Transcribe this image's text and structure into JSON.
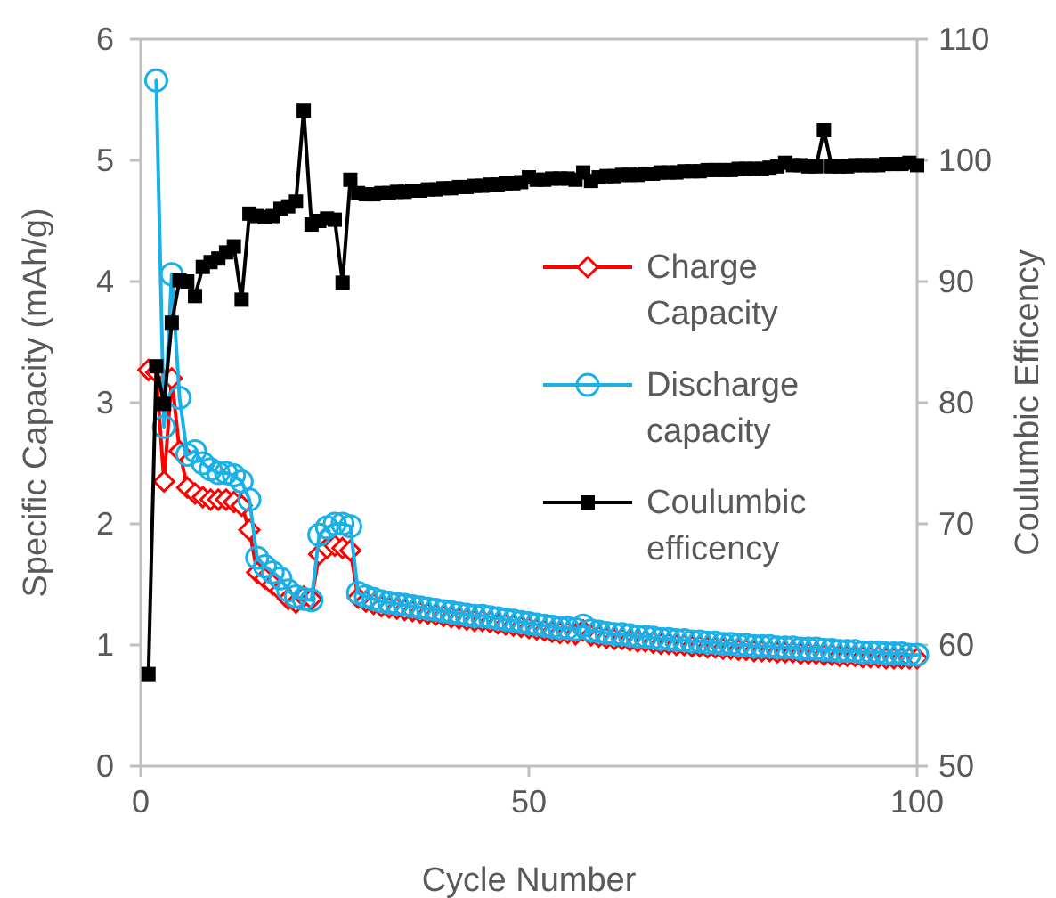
{
  "chart_data": {
    "type": "line",
    "xlabel": "Cycle Number",
    "ylabel": "Specific Capacity (mAh/g)",
    "y2label": "Coulumbic Efficency",
    "x": [
      1,
      2,
      3,
      4,
      5,
      6,
      7,
      8,
      9,
      10,
      11,
      12,
      13,
      14,
      15,
      16,
      17,
      18,
      19,
      20,
      21,
      22,
      23,
      24,
      25,
      26,
      27,
      28,
      29,
      30,
      31,
      32,
      33,
      34,
      35,
      36,
      37,
      38,
      39,
      40,
      41,
      42,
      43,
      44,
      45,
      46,
      47,
      48,
      49,
      50,
      51,
      52,
      53,
      54,
      55,
      56,
      57,
      58,
      59,
      60,
      61,
      62,
      63,
      64,
      65,
      66,
      67,
      68,
      69,
      70,
      71,
      72,
      73,
      74,
      75,
      76,
      77,
      78,
      79,
      80,
      81,
      82,
      83,
      84,
      85,
      86,
      87,
      88,
      89,
      90,
      91,
      92,
      93,
      94,
      95,
      96,
      97,
      98,
      99,
      100
    ],
    "xlim": [
      0,
      100
    ],
    "xticks": [
      0,
      50,
      100
    ],
    "ylim": [
      0,
      6
    ],
    "yticks": [
      0,
      1,
      2,
      3,
      4,
      5,
      6
    ],
    "y2lim": [
      50,
      110
    ],
    "y2ticks": [
      50,
      60,
      70,
      80,
      90,
      100,
      110
    ],
    "legend": "right",
    "grid": false,
    "series": [
      {
        "name": "Charge Capacity",
        "color": "#ff0000",
        "marker": "diamond",
        "values": [
          3.27,
          3.25,
          2.35,
          3.2,
          2.6,
          2.3,
          2.25,
          2.22,
          2.2,
          2.2,
          2.2,
          2.18,
          2.15,
          1.95,
          1.6,
          1.55,
          1.5,
          1.45,
          1.38,
          1.35,
          1.4,
          1.38,
          1.75,
          1.8,
          1.82,
          1.8,
          1.78,
          1.39,
          1.36,
          1.34,
          1.32,
          1.31,
          1.3,
          1.29,
          1.28,
          1.27,
          1.26,
          1.25,
          1.24,
          1.23,
          1.22,
          1.21,
          1.2,
          1.2,
          1.19,
          1.18,
          1.17,
          1.16,
          1.15,
          1.14,
          1.13,
          1.12,
          1.11,
          1.1,
          1.1,
          1.09,
          1.12,
          1.08,
          1.07,
          1.06,
          1.05,
          1.05,
          1.04,
          1.03,
          1.03,
          1.02,
          1.01,
          1.01,
          1.0,
          1.0,
          0.99,
          0.99,
          0.98,
          0.98,
          0.97,
          0.97,
          0.96,
          0.96,
          0.95,
          0.95,
          0.95,
          0.94,
          0.94,
          0.94,
          0.93,
          0.93,
          0.93,
          0.92,
          0.92,
          0.91,
          0.91,
          0.91,
          0.9,
          0.9,
          0.9,
          0.89,
          0.89,
          0.89,
          0.89,
          0.89
        ]
      },
      {
        "name": "Discharge capacity",
        "color": "#1ab0e8",
        "marker": "circle",
        "values": [
          null,
          5.66,
          2.8,
          4.06,
          3.04,
          2.57,
          2.6,
          2.5,
          2.45,
          2.42,
          2.42,
          2.4,
          2.35,
          2.2,
          1.72,
          1.65,
          1.6,
          1.55,
          1.45,
          1.4,
          1.38,
          1.37,
          1.91,
          1.97,
          2.0,
          2.0,
          1.98,
          1.43,
          1.4,
          1.38,
          1.36,
          1.35,
          1.34,
          1.33,
          1.32,
          1.31,
          1.3,
          1.29,
          1.28,
          1.27,
          1.26,
          1.25,
          1.24,
          1.24,
          1.23,
          1.22,
          1.21,
          1.2,
          1.19,
          1.18,
          1.17,
          1.16,
          1.15,
          1.14,
          1.14,
          1.13,
          1.16,
          1.12,
          1.11,
          1.1,
          1.09,
          1.09,
          1.08,
          1.07,
          1.07,
          1.06,
          1.05,
          1.05,
          1.04,
          1.04,
          1.03,
          1.03,
          1.02,
          1.02,
          1.01,
          1.01,
          1.0,
          1.0,
          0.99,
          0.99,
          0.99,
          0.98,
          0.98,
          0.98,
          0.97,
          0.97,
          0.97,
          0.96,
          0.96,
          0.95,
          0.95,
          0.95,
          0.94,
          0.94,
          0.94,
          0.93,
          0.93,
          0.93,
          0.92,
          0.92
        ]
      },
      {
        "name": "Coulumbic efficency",
        "color": "#000000",
        "marker": "square",
        "axis": "y2",
        "values": [
          57.6,
          83,
          79.9,
          86.6,
          90.1,
          90,
          88.8,
          91.2,
          91.6,
          91.9,
          92.4,
          92.9,
          88.5,
          95.6,
          95.4,
          95.3,
          95.4,
          96,
          96.2,
          96.6,
          104.1,
          94.7,
          95,
          95.2,
          95.1,
          89.9,
          98.4,
          97.3,
          97.2,
          97.2,
          97.3,
          97.3,
          97.4,
          97.4,
          97.5,
          97.5,
          97.6,
          97.6,
          97.7,
          97.7,
          97.8,
          97.8,
          97.9,
          97.9,
          98.0,
          98.0,
          98.1,
          98.1,
          98.2,
          98.6,
          98.4,
          98.4,
          98.5,
          98.5,
          98.5,
          98.4,
          99.0,
          98.3,
          98.6,
          98.7,
          98.7,
          98.8,
          98.8,
          98.8,
          98.9,
          98.9,
          99.0,
          99.0,
          99.0,
          99.1,
          99.1,
          99.1,
          99.2,
          99.2,
          99.2,
          99.2,
          99.3,
          99.3,
          99.3,
          99.3,
          99.4,
          99.5,
          99.8,
          99.6,
          99.6,
          99.5,
          99.5,
          102.5,
          99.5,
          99.5,
          99.5,
          99.6,
          99.6,
          99.6,
          99.6,
          99.7,
          99.7,
          99.7,
          99.8,
          99.6
        ]
      }
    ]
  }
}
